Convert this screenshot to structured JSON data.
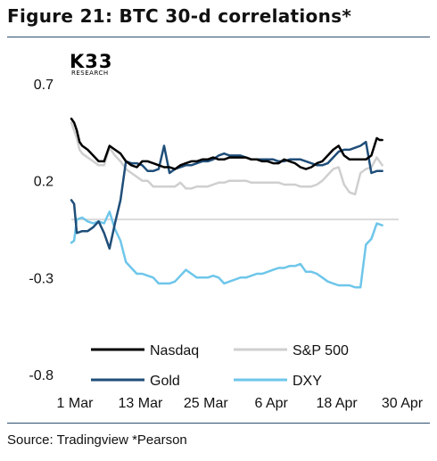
{
  "header": {
    "title": "Figure 21: BTC 30-d correlations*"
  },
  "logo": {
    "main": "K33",
    "sub": "RESEARCH"
  },
  "footer": {
    "source": "Source: Tradingview *Pearson"
  },
  "colors": {
    "nasdaq": "#000000",
    "sp500": "#cfcfcf",
    "gold": "#1f4e79",
    "dxy": "#6ec6ea",
    "zero_line": "#d9d9d9",
    "rule": "#2f4f6f"
  },
  "chart_data": {
    "type": "line",
    "title": "Figure 21: BTC 30-d correlations*",
    "xlabel": "",
    "ylabel": "",
    "ylim": [
      -0.8,
      0.7
    ],
    "yticks": [
      "0.7",
      "0.2",
      "-0.3",
      "-0.8"
    ],
    "xticks": [
      "1 Mar",
      "13 Mar",
      "25 Mar",
      "6 Apr",
      "18 Apr",
      "30 Apr"
    ],
    "x_days": [
      0,
      12,
      24,
      36,
      48,
      60
    ],
    "zero_line": true,
    "grid": false,
    "legend_position": "bottom",
    "legend": [
      "Nasdaq",
      "S&P 500",
      "Gold",
      "DXY"
    ],
    "series": [
      {
        "name": "Nasdaq",
        "x": [
          0,
          0.5,
          1,
          1.5,
          2,
          3,
          4,
          5,
          6,
          7,
          8,
          9,
          10,
          11,
          12,
          13,
          14,
          15,
          16,
          17,
          18,
          19,
          20,
          21,
          22,
          23,
          24,
          25,
          26,
          27,
          28,
          29,
          30,
          31,
          32,
          33,
          34,
          35,
          36,
          37,
          38,
          39,
          40,
          41,
          42,
          43,
          44,
          45,
          46,
          47,
          48,
          49,
          50,
          51,
          52,
          53,
          54,
          55,
          56,
          56.5,
          57
        ],
        "values": [
          0.52,
          0.5,
          0.46,
          0.4,
          0.38,
          0.36,
          0.33,
          0.3,
          0.3,
          0.38,
          0.36,
          0.34,
          0.3,
          0.28,
          0.27,
          0.3,
          0.3,
          0.29,
          0.28,
          0.27,
          0.27,
          0.26,
          0.28,
          0.29,
          0.3,
          0.3,
          0.31,
          0.31,
          0.32,
          0.31,
          0.31,
          0.32,
          0.32,
          0.32,
          0.32,
          0.31,
          0.31,
          0.3,
          0.3,
          0.29,
          0.29,
          0.31,
          0.3,
          0.29,
          0.27,
          0.26,
          0.27,
          0.29,
          0.3,
          0.33,
          0.36,
          0.38,
          0.33,
          0.31,
          0.31,
          0.31,
          0.31,
          0.33,
          0.42,
          0.41,
          0.41
        ]
      },
      {
        "name": "S&P 500",
        "x": [
          0,
          0.5,
          1,
          1.5,
          2,
          3,
          4,
          5,
          6,
          7,
          8,
          9,
          10,
          11,
          12,
          13,
          14,
          15,
          16,
          17,
          18,
          19,
          20,
          21,
          22,
          23,
          24,
          25,
          26,
          27,
          28,
          29,
          30,
          31,
          32,
          33,
          34,
          35,
          36,
          37,
          38,
          39,
          40,
          41,
          42,
          43,
          44,
          45,
          46,
          47,
          48,
          49,
          50,
          51,
          52,
          53,
          54,
          55,
          56,
          57
        ],
        "values": [
          0.5,
          0.46,
          0.42,
          0.36,
          0.34,
          0.32,
          0.3,
          0.28,
          0.28,
          0.37,
          0.33,
          0.3,
          0.26,
          0.24,
          0.22,
          0.2,
          0.2,
          0.17,
          0.17,
          0.17,
          0.17,
          0.17,
          0.19,
          0.16,
          0.16,
          0.17,
          0.17,
          0.17,
          0.18,
          0.19,
          0.19,
          0.2,
          0.2,
          0.2,
          0.2,
          0.19,
          0.19,
          0.19,
          0.19,
          0.19,
          0.19,
          0.18,
          0.18,
          0.18,
          0.17,
          0.17,
          0.17,
          0.18,
          0.2,
          0.23,
          0.26,
          0.27,
          0.18,
          0.14,
          0.13,
          0.24,
          0.26,
          0.27,
          0.32,
          0.28
        ]
      },
      {
        "name": "Gold",
        "x": [
          0,
          0.5,
          1,
          2,
          3,
          4,
          5,
          6,
          7,
          8,
          9,
          10,
          11,
          12,
          13,
          14,
          15,
          16,
          17,
          18,
          19,
          20,
          21,
          22,
          23,
          24,
          25,
          26,
          27,
          28,
          29,
          30,
          31,
          32,
          33,
          34,
          35,
          36,
          37,
          38,
          39,
          40,
          41,
          42,
          43,
          44,
          45,
          46,
          47,
          48,
          49,
          50,
          51,
          52,
          53,
          54,
          55,
          56,
          57
        ],
        "values": [
          0.1,
          0.08,
          -0.07,
          -0.06,
          -0.06,
          -0.04,
          -0.01,
          -0.07,
          -0.15,
          -0.02,
          0.1,
          0.3,
          0.29,
          0.29,
          0.28,
          0.25,
          0.25,
          0.26,
          0.38,
          0.24,
          0.26,
          0.27,
          0.28,
          0.28,
          0.29,
          0.3,
          0.3,
          0.31,
          0.33,
          0.34,
          0.33,
          0.33,
          0.33,
          0.32,
          0.31,
          0.31,
          0.31,
          0.31,
          0.31,
          0.3,
          0.3,
          0.31,
          0.31,
          0.31,
          0.3,
          0.29,
          0.28,
          0.28,
          0.29,
          0.32,
          0.35,
          0.36,
          0.36,
          0.37,
          0.38,
          0.4,
          0.24,
          0.25,
          0.25
        ]
      },
      {
        "name": "DXY",
        "x": [
          0,
          0.5,
          1,
          2,
          3,
          4,
          5,
          6,
          7,
          8,
          9,
          10,
          11,
          12,
          13,
          14,
          15,
          16,
          17,
          18,
          19,
          20,
          21,
          22,
          23,
          24,
          25,
          26,
          27,
          28,
          29,
          30,
          31,
          32,
          33,
          34,
          35,
          36,
          37,
          38,
          39,
          40,
          41,
          42,
          43,
          44,
          45,
          46,
          47,
          48,
          49,
          50,
          51,
          52,
          53,
          54,
          55,
          56,
          57
        ],
        "values": [
          -0.12,
          -0.11,
          0.0,
          0.01,
          -0.01,
          -0.02,
          -0.01,
          -0.02,
          0.04,
          -0.05,
          -0.11,
          -0.22,
          -0.25,
          -0.28,
          -0.28,
          -0.29,
          -0.3,
          -0.33,
          -0.33,
          -0.33,
          -0.32,
          -0.29,
          -0.26,
          -0.28,
          -0.3,
          -0.3,
          -0.3,
          -0.29,
          -0.3,
          -0.33,
          -0.32,
          -0.31,
          -0.3,
          -0.3,
          -0.29,
          -0.28,
          -0.28,
          -0.27,
          -0.26,
          -0.25,
          -0.25,
          -0.24,
          -0.24,
          -0.23,
          -0.27,
          -0.27,
          -0.28,
          -0.3,
          -0.32,
          -0.33,
          -0.34,
          -0.34,
          -0.34,
          -0.35,
          -0.35,
          -0.13,
          -0.1,
          -0.02,
          -0.03
        ]
      }
    ]
  }
}
